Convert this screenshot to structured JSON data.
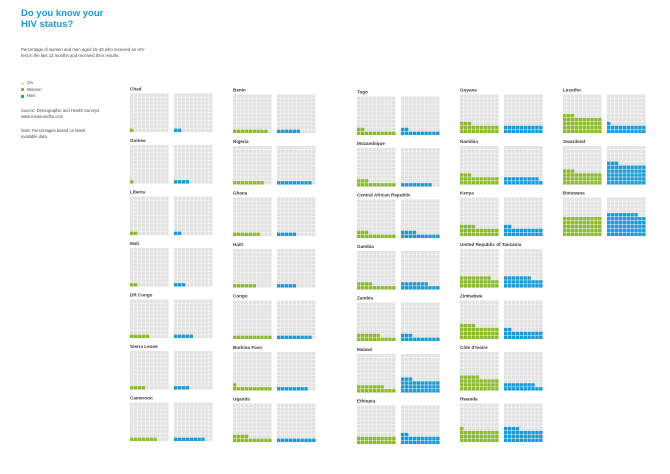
{
  "header": {
    "title_line1": "Do you know your",
    "title_line2": "HIV status?",
    "subtitle": "Percentage of women and men aged 15-49 who received an HIV test in the last 12 months and received their results."
  },
  "legend": {
    "unit_label": "1%",
    "women_label": "Women",
    "men_label": "Men"
  },
  "source": {
    "line1": "Source: Demographic and Health Surveys",
    "line2": "www.measuredhs.com"
  },
  "note": {
    "line1": "Note: Percentages based on latest",
    "line2": "available data"
  },
  "colors": {
    "women": "#8cba2e",
    "men": "#1a9bd7",
    "empty": "#e2e2e2",
    "title": "#1a9bd7"
  },
  "chart_data": {
    "type": "waffle",
    "unit": "1 square = 1%",
    "grid": "10 x 10",
    "series": [
      {
        "name": "Women"
      },
      {
        "name": "Men"
      }
    ],
    "countries": [
      {
        "name": "Chad",
        "women": 1,
        "men": 2
      },
      {
        "name": "Guinea",
        "women": 1,
        "men": 4
      },
      {
        "name": "Liberia",
        "women": 2,
        "men": 2
      },
      {
        "name": "Mali",
        "women": 2,
        "men": 3
      },
      {
        "name": "DR Congo",
        "women": 5,
        "men": 5
      },
      {
        "name": "Sierra Leone",
        "women": 4,
        "men": 4
      },
      {
        "name": "Cameroon",
        "women": 7,
        "men": 8
      },
      {
        "name": "Benin",
        "women": 9,
        "men": 6
      },
      {
        "name": "Nigeria",
        "women": 8,
        "men": 9
      },
      {
        "name": "Ghana",
        "women": 7,
        "men": 5
      },
      {
        "name": "Haiti",
        "women": 6,
        "men": 5
      },
      {
        "name": "Congo",
        "women": 10,
        "men": 9
      },
      {
        "name": "Burkina Faso",
        "women": 11,
        "men": 8
      },
      {
        "name": "Uganda",
        "women": 14,
        "men": 10
      },
      {
        "name": "Togo",
        "women": 12,
        "men": 12
      },
      {
        "name": "Mozambique",
        "women": 13,
        "men": 8
      },
      {
        "name": "Central African Republic",
        "women": 13,
        "men": 14
      },
      {
        "name": "Gambia",
        "women": 14,
        "men": 17
      },
      {
        "name": "Zambia",
        "women": 16,
        "men": 13
      },
      {
        "name": "Malawi",
        "women": 17,
        "men": 33
      },
      {
        "name": "Ethiopia",
        "women": 20,
        "men": 22
      },
      {
        "name": "Guyana",
        "women": 23,
        "men": 20
      },
      {
        "name": "Namibia",
        "women": 23,
        "men": 19
      },
      {
        "name": "Kenya",
        "women": 24,
        "men": 22
      },
      {
        "name": "United Republic of Tanzania",
        "women": 28,
        "men": 27
      },
      {
        "name": "Zimbabwe",
        "women": 34,
        "men": 22
      },
      {
        "name": "Côte d'Ivoire",
        "women": 35,
        "men": 18
      },
      {
        "name": "Rwanda",
        "women": 31,
        "men": 34
      },
      {
        "name": "Lesotho",
        "women": 43,
        "men": 21
      },
      {
        "name": "Swaziland",
        "women": 33,
        "men": 53
      },
      {
        "name": "Botswana",
        "women": 50,
        "men": 58
      }
    ]
  }
}
